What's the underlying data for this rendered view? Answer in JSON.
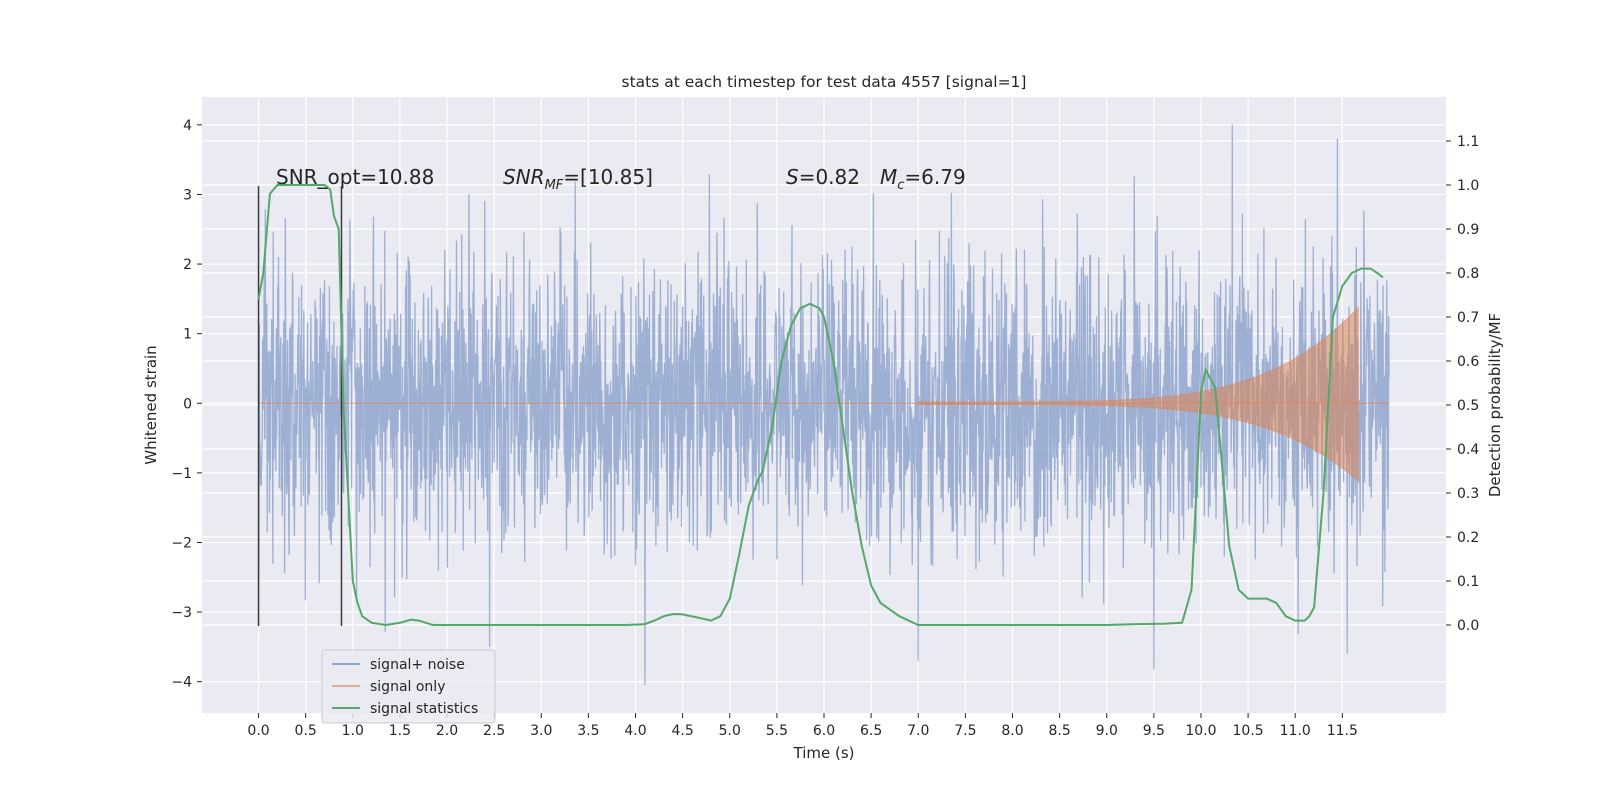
{
  "chart_data": {
    "type": "line",
    "title": "stats at each timestep for test data 4557 [signal=1]",
    "xlabel": "Time (s)",
    "ylabel": "Whitened strain",
    "y2label": "Detection probability/MF",
    "xlim": [
      -0.6,
      12.6
    ],
    "ylim": [
      -4.45,
      4.4
    ],
    "y2lim": [
      -0.2,
      1.2
    ],
    "xticks": [
      0.0,
      0.5,
      1.0,
      1.5,
      2.0,
      2.5,
      3.0,
      3.5,
      4.0,
      4.5,
      5.0,
      5.5,
      6.0,
      6.5,
      7.0,
      7.5,
      8.0,
      8.5,
      9.0,
      9.5,
      10.0,
      10.5,
      11.0,
      11.5
    ],
    "xtick_labels": [
      "0.0",
      "0.5",
      "1.0",
      "1.5",
      "2.0",
      "2.5",
      "3.0",
      "3.5",
      "4.0",
      "4.5",
      "5.0",
      "5.5",
      "6.0",
      "6.5",
      "7.0",
      "7.5",
      "8.0",
      "8.5",
      "9.0",
      "9.5",
      "10.0",
      "10.5",
      "11.0",
      "11.5"
    ],
    "yticks": [
      -4,
      -3,
      -2,
      -1,
      0,
      1,
      2,
      3,
      4
    ],
    "ytick_labels": [
      "−4",
      "−3",
      "−2",
      "−1",
      "0",
      "1",
      "2",
      "3",
      "4"
    ],
    "y2ticks": [
      0.0,
      0.1,
      0.2,
      0.3,
      0.4,
      0.5,
      0.6,
      0.7,
      0.8,
      0.9,
      1.0,
      1.1
    ],
    "y2tick_labels": [
      "0.0",
      "0.1",
      "0.2",
      "0.3",
      "0.4",
      "0.5",
      "0.6",
      "0.7",
      "0.8",
      "0.9",
      "1.0",
      "1.1"
    ],
    "grid": true,
    "legend_position": "lower-left",
    "annotations": {
      "snr_opt": "SNR_opt=10.88",
      "snr_mf_base": "SNR",
      "snr_mf_sub": "MF",
      "snr_mf_rest": "=[10.85]",
      "s_sym": "S",
      "s_rest": "=0.82",
      "mc_sym": "M",
      "mc_sub": "c",
      "mc_rest": "=6.79"
    },
    "vertical_markers": [
      {
        "x": 0.0,
        "y_min": -3.2,
        "y_max": 3.12
      },
      {
        "x": 0.88,
        "y_min": -3.2,
        "y_max": 3.12
      }
    ],
    "series": [
      {
        "name": "signal+ noise",
        "color": "#8fa4cc",
        "axis": "left",
        "duration": 12.0,
        "noise_sigma": 1.0,
        "peak_envelope": 4.0,
        "extremes": [
          {
            "x": 10.33,
            "y": 4.0
          },
          {
            "x": 11.45,
            "y": 3.8
          },
          {
            "x": 9.5,
            "y": -3.82
          },
          {
            "x": 4.1,
            "y": -4.05
          },
          {
            "x": 2.45,
            "y": -3.5
          },
          {
            "x": 11.55,
            "y": -3.6
          },
          {
            "x": 7.0,
            "y": -3.7
          }
        ]
      },
      {
        "name": "signal only",
        "color": "#dd8452",
        "axis": "left",
        "chirp": {
          "start": 7.0,
          "end": 11.67,
          "amplitude_start": 0.02,
          "amplitude_end": 1.38,
          "merger_x": 11.67,
          "merger_peak": 1.38,
          "merger_trough": -1.12
        }
      },
      {
        "name": "signal statistics",
        "color": "#55a868",
        "axis": "right",
        "x": [
          0.0,
          0.05,
          0.12,
          0.2,
          0.3,
          0.45,
          0.6,
          0.7,
          0.76,
          0.8,
          0.85,
          0.9,
          0.95,
          1.0,
          1.05,
          1.1,
          1.2,
          1.35,
          1.5,
          1.62,
          1.7,
          1.85,
          2.0,
          2.5,
          3.0,
          3.5,
          3.7,
          3.9,
          4.1,
          4.2,
          4.3,
          4.4,
          4.5,
          4.7,
          4.8,
          4.9,
          5.0,
          5.1,
          5.2,
          5.3,
          5.35,
          5.45,
          5.55,
          5.65,
          5.75,
          5.85,
          5.95,
          6.0,
          6.1,
          6.2,
          6.3,
          6.4,
          6.5,
          6.6,
          6.8,
          7.0,
          7.2,
          7.5,
          8.0,
          8.5,
          9.0,
          9.3,
          9.6,
          9.8,
          9.9,
          9.95,
          10.0,
          10.05,
          10.1,
          10.15,
          10.2,
          10.3,
          10.4,
          10.5,
          10.6,
          10.7,
          10.8,
          10.9,
          11.0,
          11.1,
          11.15,
          11.2,
          11.3,
          11.4,
          11.5,
          11.6,
          11.7,
          11.8,
          11.87,
          11.93
        ],
        "y": [
          0.74,
          0.8,
          0.98,
          1.0,
          1.0,
          1.0,
          1.0,
          1.0,
          0.99,
          0.93,
          0.9,
          0.5,
          0.3,
          0.1,
          0.05,
          0.02,
          0.005,
          0.0,
          0.005,
          0.012,
          0.01,
          0.0,
          0.0,
          0.0,
          0.0,
          0.0,
          0.0,
          0.0,
          0.002,
          0.01,
          0.02,
          0.025,
          0.024,
          0.015,
          0.01,
          0.02,
          0.06,
          0.16,
          0.27,
          0.33,
          0.35,
          0.45,
          0.6,
          0.68,
          0.72,
          0.73,
          0.72,
          0.7,
          0.6,
          0.45,
          0.3,
          0.18,
          0.09,
          0.05,
          0.02,
          0.0,
          0.0,
          0.0,
          0.0,
          0.0,
          0.0,
          0.002,
          0.003,
          0.005,
          0.08,
          0.3,
          0.53,
          0.58,
          0.56,
          0.54,
          0.42,
          0.18,
          0.08,
          0.06,
          0.06,
          0.06,
          0.05,
          0.02,
          0.01,
          0.01,
          0.02,
          0.04,
          0.3,
          0.7,
          0.77,
          0.8,
          0.81,
          0.81,
          0.8,
          0.79
        ]
      }
    ]
  }
}
